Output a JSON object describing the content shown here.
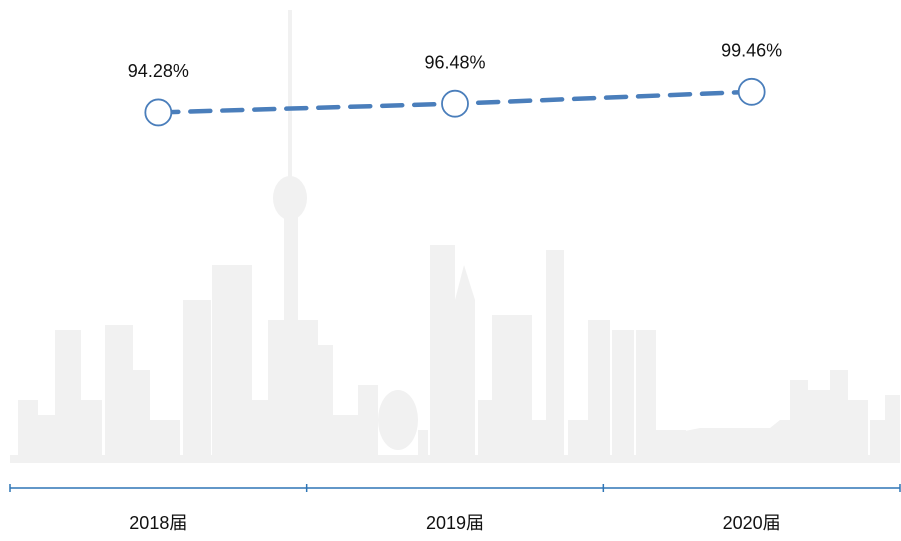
{
  "chart_data": {
    "type": "line",
    "categories": [
      "2018届",
      "2019届",
      "2020届"
    ],
    "values": [
      94.28,
      96.48,
      99.46
    ],
    "value_labels": [
      "94.28%",
      "96.48%",
      "99.46%"
    ],
    "color": "#4a7ebb",
    "ylim": [
      0,
      120
    ]
  }
}
